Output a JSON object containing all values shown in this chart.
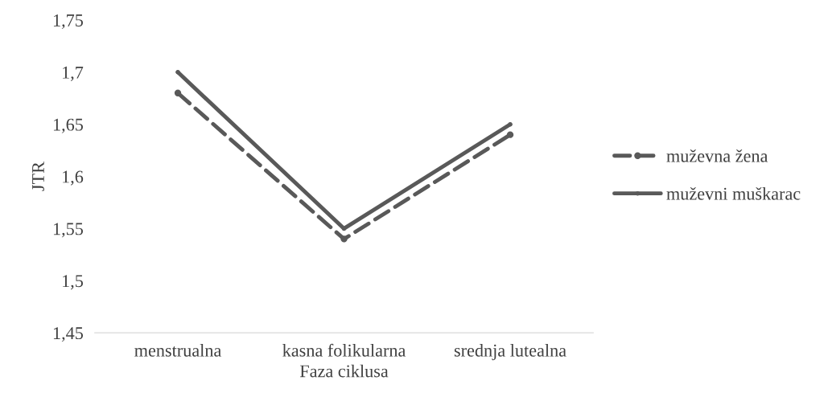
{
  "chart_data": {
    "type": "line",
    "xlabel": "Faza ciklusa",
    "ylabel": "JTR",
    "categories": [
      "menstrualna",
      "kasna folikularna",
      "srednja lutealna"
    ],
    "series": [
      {
        "name": "muževna žena",
        "color": "#595959",
        "values": [
          1.68,
          1.54,
          1.64
        ],
        "line_style": "dashed",
        "marker": "circle"
      },
      {
        "name": "muževni muškarac",
        "color": "#595959",
        "values": [
          1.7,
          1.55,
          1.65
        ],
        "line_style": "solid",
        "marker": "circle"
      }
    ],
    "ylim": [
      1.45,
      1.75
    ],
    "yticks": [
      {
        "value": 1.45,
        "label": "1,45"
      },
      {
        "value": 1.5,
        "label": "1,5"
      },
      {
        "value": 1.55,
        "label": "1,55"
      },
      {
        "value": 1.6,
        "label": "1,6"
      },
      {
        "value": 1.65,
        "label": "1,65"
      },
      {
        "value": 1.7,
        "label": "1,7"
      },
      {
        "value": 1.75,
        "label": "1,75"
      }
    ],
    "grid": false,
    "legend": "right"
  }
}
